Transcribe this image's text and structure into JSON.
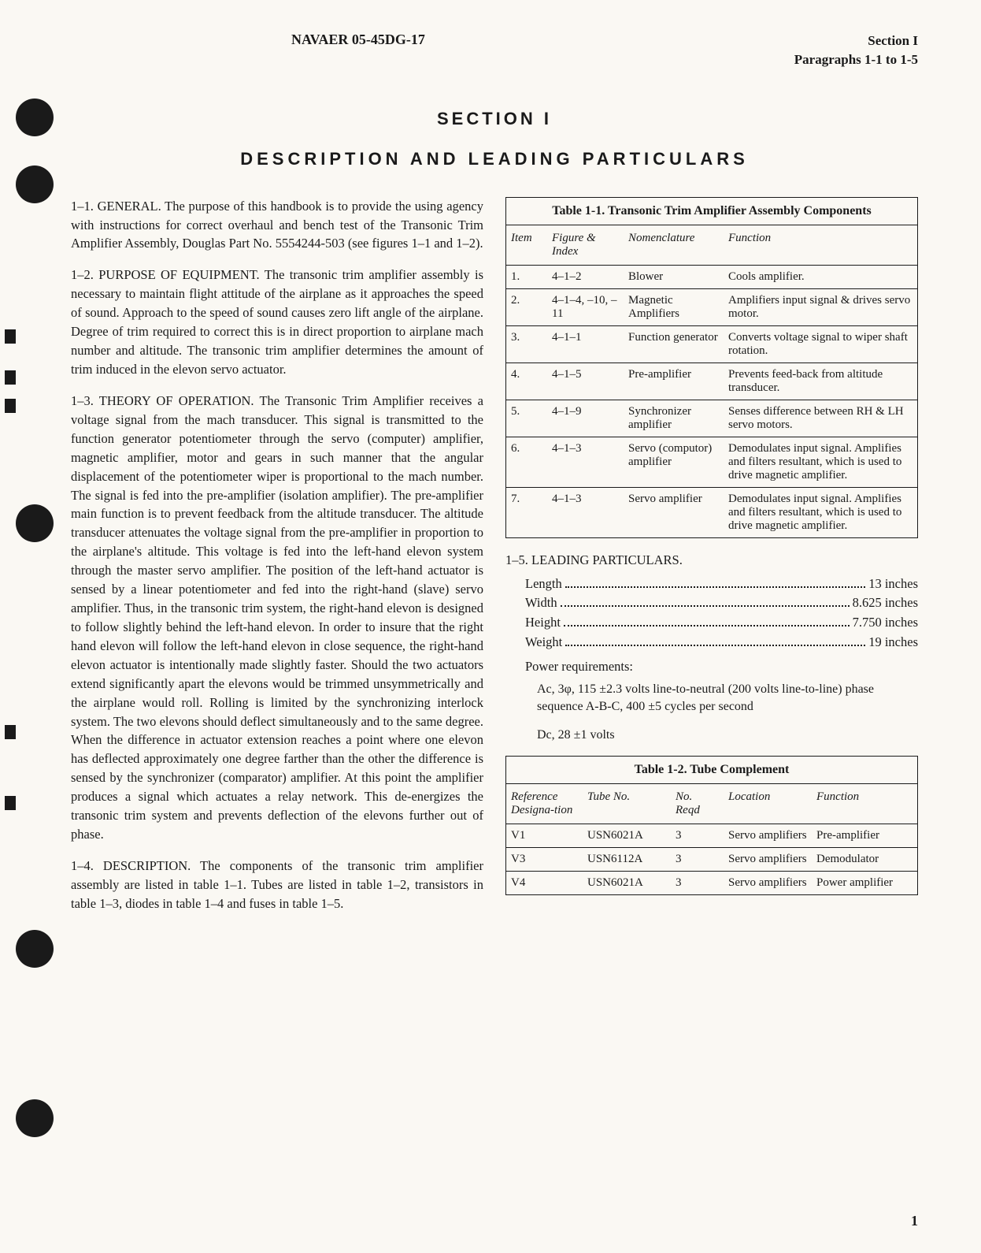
{
  "header": {
    "doc_number": "NAVAER 05-45DG-17",
    "section": "Section I",
    "para_range": "Paragraphs 1-1 to 1-5"
  },
  "title": "SECTION I",
  "subtitle": "DESCRIPTION AND LEADING PARTICULARS",
  "paragraphs": {
    "p1": "1–1. GENERAL. The purpose of this handbook is to provide the using agency with instructions for correct overhaul and bench test of the Transonic Trim Amplifier Assembly, Douglas Part No. 5554244-503 (see figures 1–1 and 1–2).",
    "p2": "1–2. PURPOSE OF EQUIPMENT. The transonic trim amplifier assembly is necessary to maintain flight attitude of the airplane as it approaches the speed of sound. Approach to the speed of sound causes zero lift angle of the airplane. Degree of trim required to correct this is in direct proportion to airplane mach number and altitude. The transonic trim amplifier determines the amount of trim induced in the elevon servo actuator.",
    "p3": "1–3. THEORY OF OPERATION. The Transonic Trim Amplifier receives a voltage signal from the mach transducer. This signal is transmitted to the function generator potentiometer through the servo (computer) amplifier, magnetic amplifier, motor and gears in such manner that the angular displacement of the potentiometer wiper is proportional to the mach number. The signal is fed into the pre-amplifier (isolation amplifier). The pre-amplifier main function is to prevent feedback from the altitude transducer. The altitude transducer attenuates the voltage signal from the pre-amplifier in proportion to the airplane's altitude. This voltage is fed into the left-hand elevon system through the master servo amplifier. The position of the left-hand actuator is sensed by a linear potentiometer and fed into the right-hand (slave) servo amplifier. Thus, in the transonic trim system, the right-hand elevon is designed to follow slightly behind the left-hand elevon. In order to insure that the right hand elevon will follow the left-hand elevon in close sequence, the right-hand elevon actuator is intentionally made slightly faster. Should the two actuators extend significantly apart the elevons would be trimmed unsymmetrically and the airplane would roll. Rolling is limited by the synchronizing interlock system. The two elevons should deflect simultaneously and to the same degree. When the difference in actuator extension reaches a point where one elevon has deflected approximately one degree farther than the other the difference is sensed by the synchronizer (comparator) amplifier. At this point the amplifier produces a signal which actuates a relay network. This de-energizes the transonic trim system and prevents deflection of the elevons further out of phase.",
    "p4": "1–4. DESCRIPTION. The components of the transonic trim amplifier assembly are listed in table 1–1. Tubes are listed in table 1–2, transistors in table 1–3, diodes in table 1–4 and fuses in table 1–5."
  },
  "table1": {
    "title": "Table 1-1. Transonic Trim Amplifier Assembly Components",
    "head": {
      "item": "Item",
      "fig": "Figure & Index",
      "nom": "Nomenclature",
      "func": "Function"
    },
    "rows": [
      {
        "item": "1.",
        "fig": "4–1–2",
        "nom": "Blower",
        "func": "Cools amplifier."
      },
      {
        "item": "2.",
        "fig": "4–1–4, –10, –11",
        "nom": "Magnetic Amplifiers",
        "func": "Amplifiers input signal & drives servo motor."
      },
      {
        "item": "3.",
        "fig": "4–1–1",
        "nom": "Function generator",
        "func": "Converts voltage signal to wiper shaft rotation."
      },
      {
        "item": "4.",
        "fig": "4–1–5",
        "nom": "Pre-amplifier",
        "func": "Prevents feed-back from altitude transducer."
      },
      {
        "item": "5.",
        "fig": "4–1–9",
        "nom": "Synchronizer amplifier",
        "func": "Senses difference between RH & LH servo motors."
      },
      {
        "item": "6.",
        "fig": "4–1–3",
        "nom": "Servo (computor) amplifier",
        "func": "Demodulates input signal. Amplifies and filters resultant, which is used to drive magnetic amplifier."
      },
      {
        "item": "7.",
        "fig": "4–1–3",
        "nom": "Servo amplifier",
        "func": "Demodulates input signal. Amplifies and filters resultant, which is used to drive magnetic amplifier."
      }
    ]
  },
  "leading": {
    "head": "1–5. LEADING PARTICULARS.",
    "rows": [
      {
        "label": "Length",
        "val": "13 inches"
      },
      {
        "label": "Width",
        "val": "8.625 inches"
      },
      {
        "label": "Height",
        "val": "7.750 inches"
      },
      {
        "label": "Weight",
        "val": "19 inches"
      }
    ],
    "power_label": "Power requirements:",
    "power1": "Ac, 3φ, 115 ±2.3 volts line-to-neutral (200 volts line-to-line) phase sequence A-B-C, 400 ±5 cycles per second",
    "power2": "Dc, 28 ±1 volts"
  },
  "table2": {
    "title": "Table 1-2. Tube Complement",
    "head": {
      "ref": "Reference Designa-tion",
      "tube": "Tube No.",
      "no": "No. Reqd",
      "loc": "Location",
      "func": "Function"
    },
    "rows": [
      {
        "ref": "V1",
        "tube": "USN6021A",
        "no": "3",
        "loc": "Servo amplifiers",
        "func": "Pre-amplifier"
      },
      {
        "ref": "V3",
        "tube": "USN6112A",
        "no": "3",
        "loc": "Servo amplifiers",
        "func": "Demodulator"
      },
      {
        "ref": "V4",
        "tube": "USN6021A",
        "no": "3",
        "loc": "Servo amplifiers",
        "func": "Power amplifier"
      }
    ]
  },
  "page_number": "1",
  "colors": {
    "bg": "#faf8f3",
    "text": "#1a1a1a"
  }
}
